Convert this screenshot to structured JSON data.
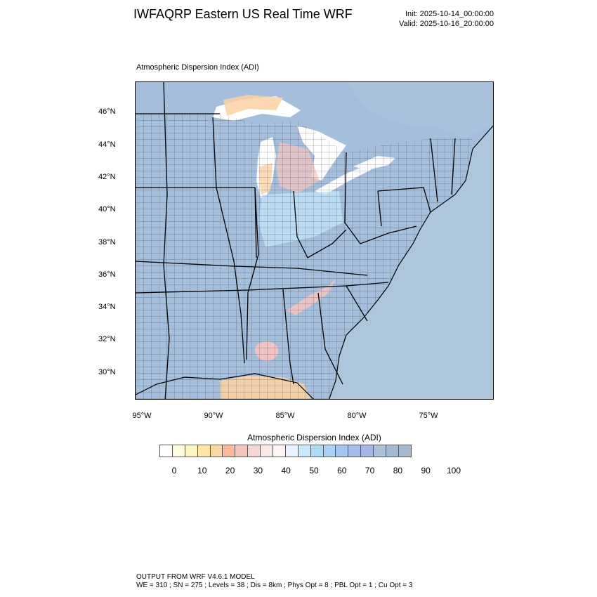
{
  "title": "IWFAQRP Eastern US Real Time WRF",
  "init": "Init: 2025-10-14_00:00:00",
  "valid": "Valid: 2025-10-16_20:00:00",
  "map_label": "Atmospheric Dispersion Index   (ADI)",
  "lat_labels": [
    "46°N",
    "44°N",
    "42°N",
    "40°N",
    "38°N",
    "36°N",
    "34°N",
    "32°N",
    "30°N"
  ],
  "lon_labels": [
    "95°W",
    "90°W",
    "85°W",
    "80°W",
    "75°W"
  ],
  "colors": {
    "ocean": "#aec6dc",
    "land_high_adi": "#a4bedc",
    "lake": "#ffffff",
    "orange": "#fbd1a3",
    "pink": "#f7c4bf",
    "light_blue": "#c3e6fa"
  },
  "labelbar": {
    "title": "Atmospheric Dispersion Index  (ADI)",
    "ticks": [
      "0",
      "10",
      "20",
      "30",
      "40",
      "50",
      "60",
      "70",
      "80",
      "90",
      "100"
    ],
    "colors": [
      "#ffffff",
      "#fffbe0",
      "#fff3bf",
      "#ffe6a6",
      "#fdd7a3",
      "#f9b99b",
      "#f6c4bf",
      "#f6d6d2",
      "#fbe9e7",
      "#fdf5f4",
      "#e9f2ff",
      "#c8e9fb",
      "#a8dcf5",
      "#a9d2f5",
      "#a5c4ee",
      "#a5bbe8",
      "#a5b4e2",
      "#adc0da",
      "#a4b9cf",
      "#a5b8cc"
    ]
  },
  "footer": {
    "line1": "OUTPUT FROM WRF V4.6.1 MODEL",
    "line2": "WE = 310 ; SN = 275 ; Levels = 38 ; Dis = 8km ; Phys Opt = 8 ; PBL Opt = 1 ; Cu Opt = 3"
  }
}
